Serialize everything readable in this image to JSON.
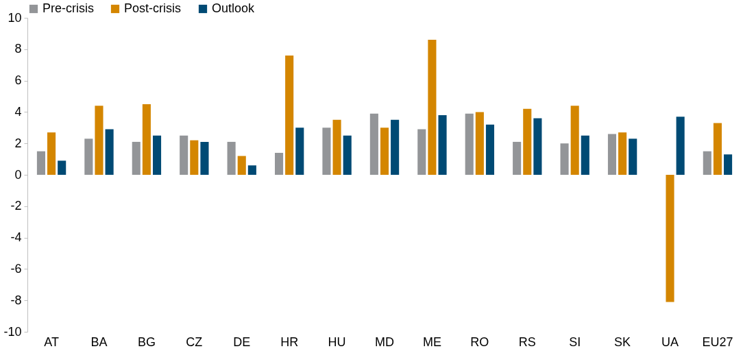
{
  "chart_data": {
    "type": "bar",
    "categories": [
      "AT",
      "BA",
      "BG",
      "CZ",
      "DE",
      "HR",
      "HU",
      "MD",
      "ME",
      "RO",
      "RS",
      "SI",
      "SK",
      "UA",
      "EU27"
    ],
    "series": [
      {
        "name": "Pre-crisis",
        "color": "#939598",
        "values": [
          1.5,
          2.3,
          2.1,
          2.5,
          2.1,
          1.4,
          3.0,
          3.9,
          2.9,
          3.9,
          2.1,
          2.0,
          2.6,
          null,
          1.5
        ]
      },
      {
        "name": "Post-crisis",
        "color": "#d48600",
        "values": [
          2.7,
          4.4,
          4.5,
          2.2,
          1.2,
          7.6,
          3.5,
          3.0,
          8.6,
          4.0,
          4.2,
          4.4,
          2.7,
          -8.1,
          3.3
        ]
      },
      {
        "name": "Outlook",
        "color": "#004a74",
        "values": [
          0.9,
          2.9,
          2.5,
          2.1,
          0.6,
          3.0,
          2.5,
          3.5,
          3.8,
          3.2,
          3.6,
          2.5,
          2.3,
          3.7,
          1.3
        ]
      }
    ],
    "ylim": [
      -10,
      10
    ],
    "yticks": [
      -10,
      -8,
      -6,
      -4,
      -2,
      0,
      2,
      4,
      6,
      8,
      10
    ],
    "grid": false,
    "legend": "top"
  }
}
